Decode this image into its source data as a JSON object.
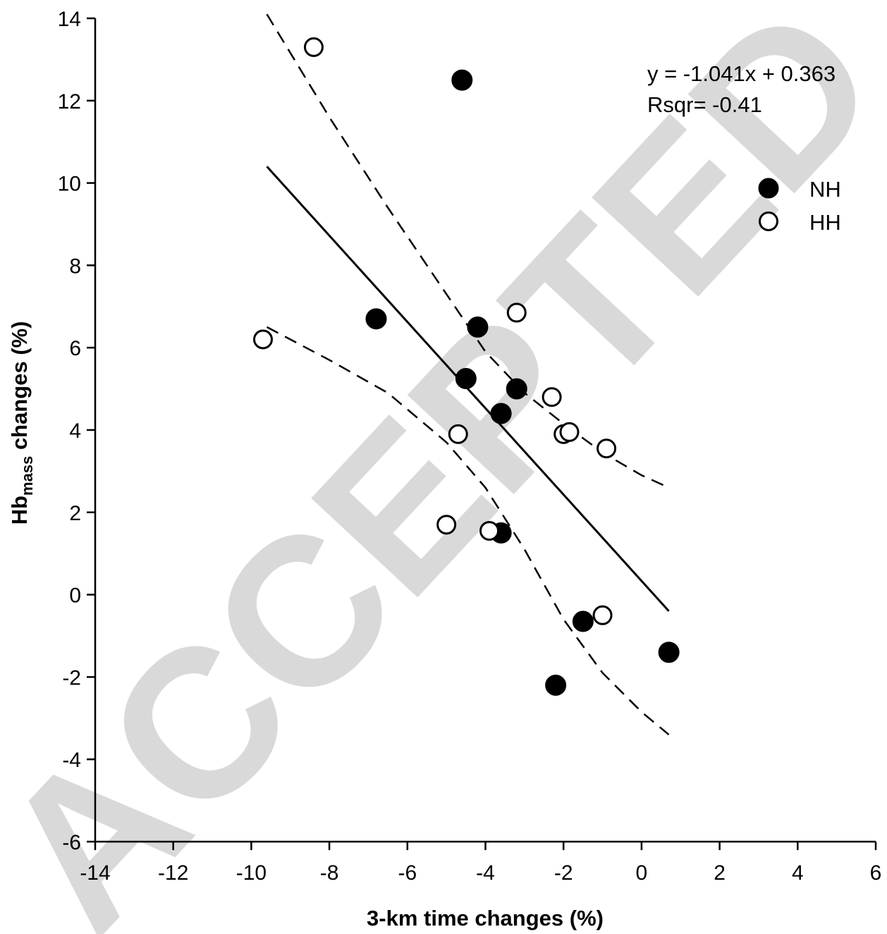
{
  "watermark": "ACCEPTED",
  "chart_data": {
    "type": "scatter",
    "title": "",
    "xlabel": "3-km time changes (%)",
    "ylabel_main": "Hb",
    "ylabel_sub": "mass",
    "ylabel_rest": " changes (%)",
    "xlim": [
      -14,
      6
    ],
    "ylim": [
      -6,
      14
    ],
    "xticks": [
      -14,
      -12,
      -10,
      -8,
      -6,
      -4,
      -2,
      0,
      2,
      4,
      6
    ],
    "yticks": [
      -6,
      -4,
      -2,
      0,
      2,
      4,
      6,
      8,
      10,
      12,
      14
    ],
    "grid": false,
    "legend_position": "top-right",
    "annotation": {
      "equation": "y = -1.041x + 0.363",
      "rsqr": "Rsqr= -0.41"
    },
    "series": [
      {
        "name": "NH",
        "marker": "filled-circle",
        "color": "#000000",
        "points": [
          {
            "x": -4.6,
            "y": 12.5
          },
          {
            "x": -6.8,
            "y": 6.7
          },
          {
            "x": -4.2,
            "y": 6.5
          },
          {
            "x": -4.5,
            "y": 5.25
          },
          {
            "x": -3.2,
            "y": 5.0
          },
          {
            "x": -3.6,
            "y": 4.4
          },
          {
            "x": -3.6,
            "y": 1.5
          },
          {
            "x": -1.5,
            "y": -0.65
          },
          {
            "x": 0.7,
            "y": -1.4
          },
          {
            "x": -2.2,
            "y": -2.2
          }
        ]
      },
      {
        "name": "HH",
        "marker": "open-circle",
        "color": "#000000",
        "points": [
          {
            "x": -8.4,
            "y": 13.3
          },
          {
            "x": -9.7,
            "y": 6.2
          },
          {
            "x": -3.2,
            "y": 6.85
          },
          {
            "x": -2.3,
            "y": 4.8
          },
          {
            "x": -2.0,
            "y": 3.9
          },
          {
            "x": -1.85,
            "y": 3.95
          },
          {
            "x": -0.9,
            "y": 3.55
          },
          {
            "x": -4.7,
            "y": 3.9
          },
          {
            "x": -5.0,
            "y": 1.7
          },
          {
            "x": -3.9,
            "y": 1.55
          },
          {
            "x": -1.0,
            "y": -0.5
          }
        ]
      }
    ],
    "regression_line": {
      "style": "solid",
      "points": [
        {
          "x": -9.6,
          "y": 10.4
        },
        {
          "x": 0.7,
          "y": -0.4
        }
      ]
    },
    "confidence_bands": [
      {
        "style": "dashed",
        "points": [
          {
            "x": -9.6,
            "y": 14.1
          },
          {
            "x": -8.0,
            "y": 11.6
          },
          {
            "x": -6.5,
            "y": 9.4
          },
          {
            "x": -5.0,
            "y": 7.3
          },
          {
            "x": -4.0,
            "y": 5.9
          },
          {
            "x": -3.0,
            "y": 4.9
          },
          {
            "x": -2.0,
            "y": 4.15
          },
          {
            "x": -1.0,
            "y": 3.45
          },
          {
            "x": 0.0,
            "y": 2.9
          },
          {
            "x": 0.7,
            "y": 2.6
          }
        ]
      },
      {
        "style": "dashed",
        "points": [
          {
            "x": -9.6,
            "y": 6.5
          },
          {
            "x": -8.0,
            "y": 5.7
          },
          {
            "x": -6.5,
            "y": 4.9
          },
          {
            "x": -5.0,
            "y": 3.7
          },
          {
            "x": -4.0,
            "y": 2.6
          },
          {
            "x": -3.0,
            "y": 1.1
          },
          {
            "x": -2.0,
            "y": -0.6
          },
          {
            "x": -1.0,
            "y": -1.9
          },
          {
            "x": 0.0,
            "y": -2.85
          },
          {
            "x": 0.7,
            "y": -3.4
          }
        ]
      }
    ]
  }
}
